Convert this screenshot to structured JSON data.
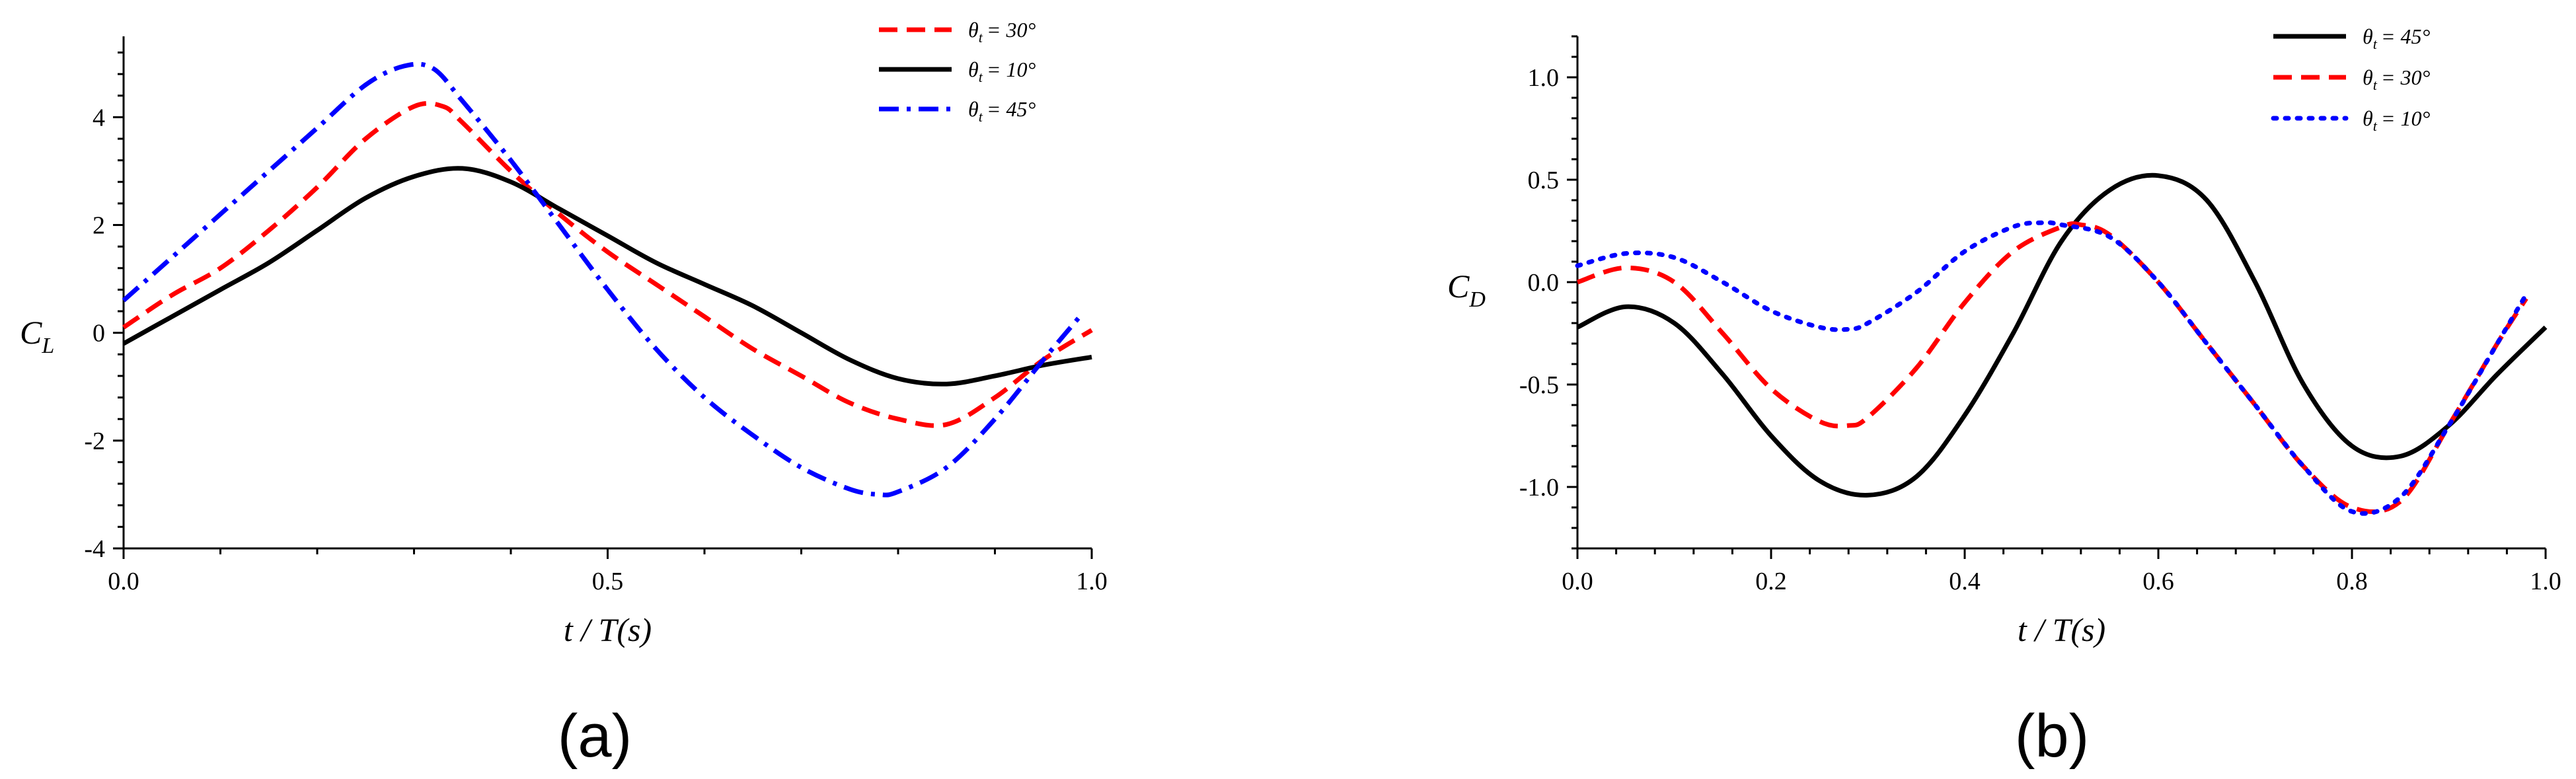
{
  "chart_data": [
    {
      "type": "line",
      "panel_label": "(a)",
      "xlabel": "t / T(s)",
      "ylabel": "C_L",
      "ylabel_main": "C",
      "ylabel_sub": "L",
      "xlim": [
        0,
        1
      ],
      "ylim": [
        -4,
        5.5
      ],
      "xticks": [
        0.0,
        0.5,
        1.0
      ],
      "xtick_labels": [
        "0.0",
        "0.5",
        "1.0"
      ],
      "yticks": [
        -4,
        -2,
        0,
        2,
        4
      ],
      "ytick_labels": [
        "-4",
        "-2",
        "0",
        "2",
        "4"
      ],
      "legend_position": "top-right",
      "series": [
        {
          "name": "θt = 30°",
          "label_symbol": "θ",
          "label_sub": "t",
          "label_rest": "= 30°",
          "color": "#ff0000",
          "style": "dash",
          "x": [
            0,
            0.05,
            0.1,
            0.15,
            0.2,
            0.25,
            0.3,
            0.33,
            0.35,
            0.4,
            0.45,
            0.5,
            0.55,
            0.6,
            0.65,
            0.7,
            0.75,
            0.8,
            0.85,
            0.9,
            0.95,
            1.0
          ],
          "y": [
            0.1,
            0.7,
            1.2,
            1.9,
            2.7,
            3.6,
            4.2,
            4.2,
            3.9,
            3.0,
            2.2,
            1.5,
            0.9,
            0.3,
            -0.3,
            -0.8,
            -1.3,
            -1.6,
            -1.7,
            -1.2,
            -0.5,
            0.05
          ]
        },
        {
          "name": "θt = 10°",
          "label_symbol": "θ",
          "label_sub": "t",
          "label_rest": "= 10°",
          "color": "#000000",
          "style": "solid",
          "x": [
            0,
            0.05,
            0.1,
            0.15,
            0.2,
            0.25,
            0.3,
            0.35,
            0.4,
            0.45,
            0.5,
            0.55,
            0.6,
            0.65,
            0.7,
            0.75,
            0.8,
            0.85,
            0.9,
            0.95,
            1.0
          ],
          "y": [
            -0.2,
            0.3,
            0.8,
            1.3,
            1.9,
            2.5,
            2.9,
            3.05,
            2.8,
            2.3,
            1.8,
            1.3,
            0.9,
            0.5,
            0.0,
            -0.5,
            -0.85,
            -0.95,
            -0.8,
            -0.6,
            -0.45
          ]
        },
        {
          "name": "θt = 45°",
          "label_symbol": "θ",
          "label_sub": "t",
          "label_rest": "= 45°",
          "color": "#0000ff",
          "style": "dashdot",
          "x": [
            0,
            0.05,
            0.1,
            0.15,
            0.2,
            0.25,
            0.29,
            0.32,
            0.35,
            0.4,
            0.45,
            0.5,
            0.55,
            0.6,
            0.65,
            0.7,
            0.75,
            0.78,
            0.8,
            0.85,
            0.9,
            0.95,
            0.99
          ],
          "y": [
            0.6,
            1.4,
            2.2,
            3.0,
            3.8,
            4.6,
            4.95,
            4.9,
            4.3,
            3.2,
            2.0,
            0.8,
            -0.3,
            -1.2,
            -1.9,
            -2.5,
            -2.9,
            -3.0,
            -2.95,
            -2.5,
            -1.6,
            -0.5,
            0.35
          ]
        }
      ]
    },
    {
      "type": "line",
      "panel_label": "(b)",
      "xlabel": "t / T(s)",
      "ylabel": "C_D",
      "ylabel_main": "C",
      "ylabel_sub": "D",
      "xlim": [
        0,
        1
      ],
      "ylim": [
        -1.3,
        1.2
      ],
      "xticks": [
        0.0,
        0.2,
        0.4,
        0.6,
        0.8,
        1.0
      ],
      "xtick_labels": [
        "0.0",
        "0.2",
        "0.4",
        "0.6",
        "0.8",
        "1.0"
      ],
      "yticks": [
        -1.0,
        -0.5,
        0.0,
        0.5,
        1.0
      ],
      "ytick_labels": [
        "-1.0",
        "-0.5",
        "0.0",
        "0.5",
        "1.0"
      ],
      "legend_position": "top-right",
      "series": [
        {
          "name": "θt = 45°",
          "label_symbol": "θ",
          "label_sub": "t",
          "label_rest": "= 45°",
          "color": "#000000",
          "style": "solid",
          "x": [
            0,
            0.05,
            0.1,
            0.15,
            0.2,
            0.25,
            0.3,
            0.35,
            0.4,
            0.45,
            0.5,
            0.55,
            0.6,
            0.65,
            0.7,
            0.75,
            0.8,
            0.85,
            0.9,
            0.95,
            1.0
          ],
          "y": [
            -0.22,
            -0.12,
            -0.2,
            -0.45,
            -0.75,
            -0.97,
            -1.04,
            -0.95,
            -0.65,
            -0.25,
            0.2,
            0.45,
            0.52,
            0.4,
            0.0,
            -0.5,
            -0.8,
            -0.85,
            -0.7,
            -0.45,
            -0.22
          ]
        },
        {
          "name": "θt = 30°",
          "label_symbol": "θ",
          "label_sub": "t",
          "label_rest": "= 30°",
          "color": "#ff0000",
          "style": "dash",
          "x": [
            0,
            0.05,
            0.1,
            0.15,
            0.2,
            0.25,
            0.28,
            0.3,
            0.35,
            0.4,
            0.45,
            0.5,
            0.52,
            0.55,
            0.6,
            0.65,
            0.7,
            0.75,
            0.8,
            0.85,
            0.9,
            0.95,
            0.98
          ],
          "y": [
            0.0,
            0.07,
            0.0,
            -0.25,
            -0.52,
            -0.68,
            -0.7,
            -0.66,
            -0.42,
            -0.1,
            0.15,
            0.27,
            0.28,
            0.23,
            0.0,
            -0.3,
            -0.6,
            -0.9,
            -1.1,
            -1.07,
            -0.7,
            -0.3,
            -0.08
          ]
        },
        {
          "name": "θt = 10°",
          "label_symbol": "θ",
          "label_sub": "t",
          "label_rest": "= 10°",
          "color": "#0000ff",
          "style": "dot",
          "x": [
            0,
            0.05,
            0.1,
            0.15,
            0.2,
            0.25,
            0.28,
            0.3,
            0.35,
            0.4,
            0.45,
            0.48,
            0.5,
            0.55,
            0.6,
            0.65,
            0.7,
            0.75,
            0.8,
            0.85,
            0.9,
            0.95,
            0.98
          ],
          "y": [
            0.08,
            0.14,
            0.12,
            0.0,
            -0.14,
            -0.22,
            -0.23,
            -0.2,
            -0.05,
            0.15,
            0.27,
            0.29,
            0.28,
            0.22,
            0.0,
            -0.3,
            -0.6,
            -0.9,
            -1.12,
            -1.05,
            -0.7,
            -0.3,
            -0.06
          ]
        }
      ]
    }
  ]
}
